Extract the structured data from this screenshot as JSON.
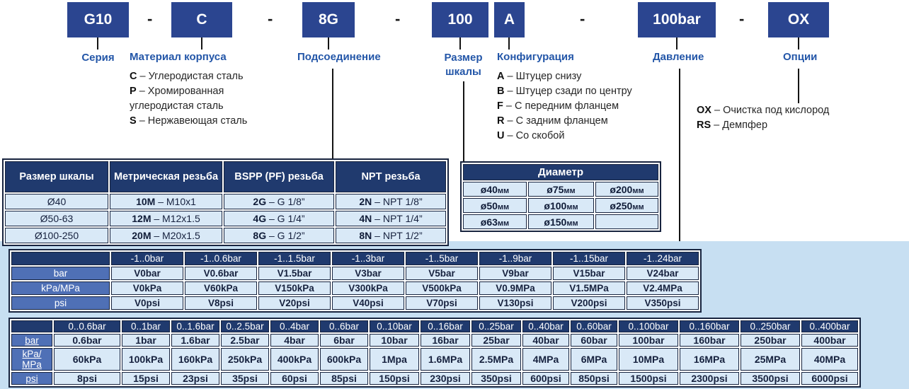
{
  "code": {
    "separator": "-",
    "parts": [
      "G10",
      "C",
      "8G",
      "100",
      "A",
      "100bar",
      "OX"
    ]
  },
  "fields": {
    "series": {
      "label": "Серия"
    },
    "material": {
      "label": "Материал корпуса",
      "items": [
        {
          "code": "C",
          "desc": "Углеродистая сталь"
        },
        {
          "code": "P",
          "desc": "Хромированная углеродистая сталь"
        },
        {
          "code": "S",
          "desc": "Нержавеющая сталь"
        }
      ]
    },
    "connection": {
      "label": "Подсоединение"
    },
    "scale_size": {
      "label": "Размер шкалы"
    },
    "configuration": {
      "label": "Конфигурация",
      "items": [
        {
          "code": "A",
          "desc": "Штуцер снизу"
        },
        {
          "code": "B",
          "desc": "Штуцер сзади по центру"
        },
        {
          "code": "F",
          "desc": "С передним фланцем"
        },
        {
          "code": "R",
          "desc": "С задним фланцем"
        },
        {
          "code": "U",
          "desc": "Со скобой"
        }
      ]
    },
    "pressure": {
      "label": "Давление"
    },
    "options": {
      "label": "Опции",
      "items": [
        {
          "code": "OX",
          "desc": "Очистка под кислород"
        },
        {
          "code": "RS",
          "desc": "Демпфер"
        }
      ]
    }
  },
  "thread_table": {
    "headers": [
      "Размер шкалы",
      "Метрическая резьба",
      "BSPP (PF) резьба",
      "NPT резьба"
    ],
    "rows": [
      {
        "size": "Ø40",
        "metric": {
          "code": "10M",
          "desc": "M10x1"
        },
        "bspp": {
          "code": "2G",
          "desc": "G 1/8”"
        },
        "npt": {
          "code": "2N",
          "desc": "NPT 1/8”"
        }
      },
      {
        "size": "Ø50-63",
        "metric": {
          "code": "12M",
          "desc": "M12x1.5"
        },
        "bspp": {
          "code": "4G",
          "desc": "G 1/4”"
        },
        "npt": {
          "code": "4N",
          "desc": "NPT 1/4”"
        }
      },
      {
        "size": "Ø100-250",
        "metric": {
          "code": "20M",
          "desc": "M20x1.5"
        },
        "bspp": {
          "code": "8G",
          "desc": "G 1/2”"
        },
        "npt": {
          "code": "8N",
          "desc": "NPT 1/2”"
        }
      }
    ]
  },
  "diameter_table": {
    "title": "Диаметр",
    "rows": [
      [
        "ø40мм",
        "ø75мм",
        "ø200мм"
      ],
      [
        "ø50мм",
        "ø100мм",
        "ø250мм"
      ],
      [
        "ø63мм",
        "ø150мм",
        ""
      ]
    ]
  },
  "vacuum_table": {
    "col_headers": [
      "-1..0bar",
      "-1..0.6bar",
      "-1..1.5bar",
      "-1..3bar",
      "-1..5bar",
      "-1..9bar",
      "-1..15bar",
      "-1..24bar"
    ],
    "row_headers": [
      "bar",
      "kPa/MPa",
      "psi"
    ],
    "rows": [
      [
        "V0bar",
        "V0.6bar",
        "V1.5bar",
        "V3bar",
        "V5bar",
        "V9bar",
        "V15bar",
        "V24bar"
      ],
      [
        "V0kPa",
        "V60kPa",
        "V150kPa",
        "V300kPa",
        "V500kPa",
        "V0.9MPa",
        "V1.5MPa",
        "V2.4MPa"
      ],
      [
        "V0psi",
        "V8psi",
        "V20psi",
        "V40psi",
        "V70psi",
        "V130psi",
        "V200psi",
        "V350psi"
      ]
    ]
  },
  "pressure_table": {
    "col_headers": [
      "0..0.6bar",
      "0..1bar",
      "0..1.6bar",
      "0..2.5bar",
      "0..4bar",
      "0..6bar",
      "0..10bar",
      "0..16bar",
      "0..25bar",
      "0..40bar",
      "0..60bar",
      "0..100bar",
      "0..160bar",
      "0..250bar",
      "0..400bar"
    ],
    "row_headers": [
      "bar",
      "kPa/\nMPa",
      "psi"
    ],
    "rows": [
      [
        "0.6bar",
        "1bar",
        "1.6bar",
        "2.5bar",
        "4bar",
        "6bar",
        "10bar",
        "16bar",
        "25bar",
        "40bar",
        "60bar",
        "100bar",
        "160bar",
        "250bar",
        "400bar"
      ],
      [
        "60kPa",
        "100kPa",
        "160kPa",
        "250kPa",
        "400kPa",
        "600kPa",
        "1Mpa",
        "1.6MPa",
        "2.5MPa",
        "4MPa",
        "6MPa",
        "10MPa",
        "16MPa",
        "25MPa",
        "40MPa"
      ],
      [
        "8psi",
        "15psi",
        "23psi",
        "35psi",
        "60psi",
        "85psi",
        "150psi",
        "230psi",
        "350psi",
        "600psi",
        "850psi",
        "1500psi",
        "2300psi",
        "3500psi",
        "6000psi"
      ]
    ]
  },
  "colors": {
    "code_box": "#2b4590",
    "table_header": "#203a6e",
    "row_label": "#4f70b6",
    "cell": "#d9e9f7",
    "band": "#c7dff2",
    "field_label_text": "#2356a8"
  }
}
